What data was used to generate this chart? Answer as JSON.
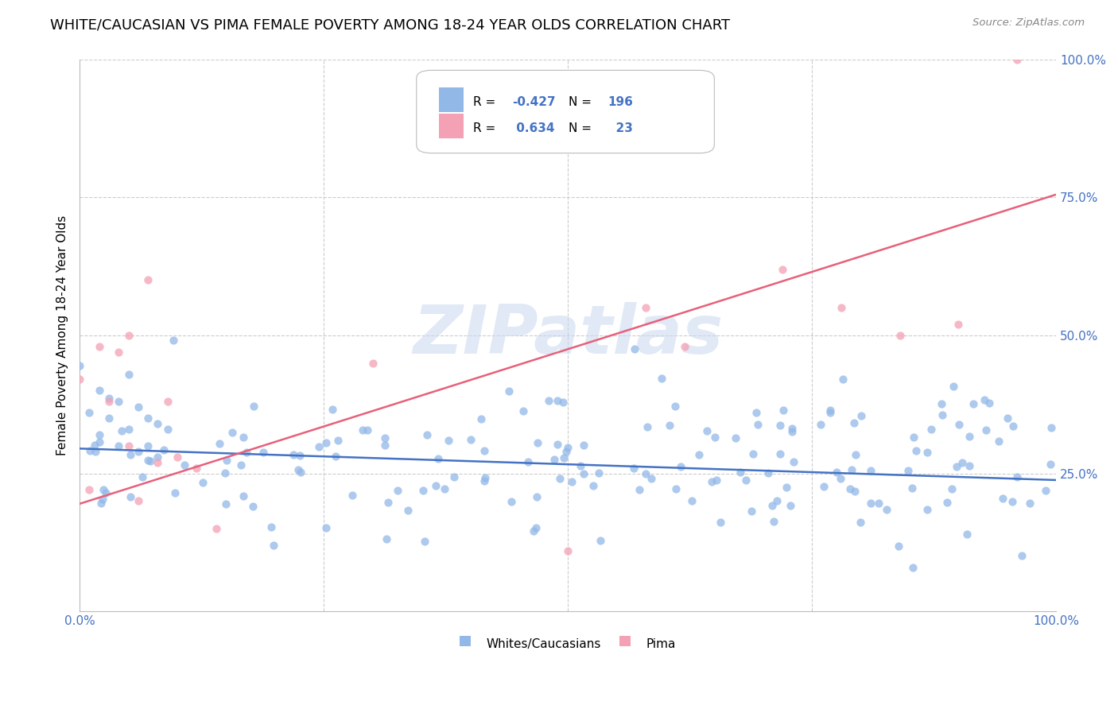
{
  "title": "WHITE/CAUCASIAN VS PIMA FEMALE POVERTY AMONG 18-24 YEAR OLDS CORRELATION CHART",
  "source": "Source: ZipAtlas.com",
  "ylabel": "Female Poverty Among 18-24 Year Olds",
  "xlim": [
    0,
    1
  ],
  "ylim": [
    0,
    1
  ],
  "ytick_positions": [
    0.25,
    0.5,
    0.75,
    1.0
  ],
  "ytick_labels": [
    "25.0%",
    "50.0%",
    "75.0%",
    "100.0%"
  ],
  "xtick_positions": [
    0.0,
    1.0
  ],
  "xtick_labels": [
    "0.0%",
    "100.0%"
  ],
  "corr_white_R": -0.427,
  "corr_white_N": 196,
  "corr_pima_R": 0.634,
  "corr_pima_N": 23,
  "watermark": "ZIPatlas",
  "background_color": "#ffffff",
  "grid_color": "#cccccc",
  "title_fontsize": 13,
  "tick_label_color": "#4472c4",
  "white_scatter_color": "#92b8e8",
  "pima_scatter_color": "#f4a0b5",
  "white_line_color": "#4472c4",
  "pima_line_color": "#e8607a",
  "scatter_alpha": 0.75,
  "scatter_size": 55,
  "white_line_start_y": 0.295,
  "white_line_end_y": 0.238,
  "pima_line_start_y": 0.195,
  "pima_line_end_y": 0.755
}
